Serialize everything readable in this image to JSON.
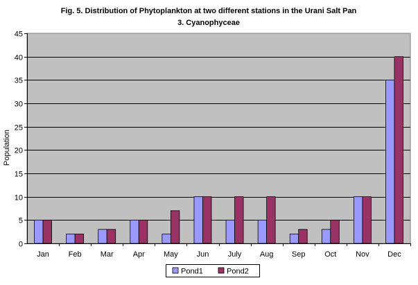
{
  "chart_data": {
    "type": "bar",
    "title": "Fig. 5. Distribution of Phytoplankton at two different stations in the Urani Salt Pan",
    "subtitle": "3. Cyanophyceae",
    "xlabel": "",
    "ylabel": "Population",
    "ylim": [
      0,
      45
    ],
    "ytick_step": 5,
    "grid": true,
    "legend_position": "bottom",
    "categories": [
      "Jan",
      "Feb",
      "Mar",
      "Apr",
      "May",
      "Jun",
      "July",
      "Aug",
      "Sep",
      "Oct",
      "Nov",
      "Dec"
    ],
    "series": [
      {
        "name": "Pond1",
        "color": "#9999ff",
        "values": [
          5,
          2,
          3,
          5,
          2,
          10,
          5,
          5,
          2,
          3,
          10,
          35
        ]
      },
      {
        "name": "Pond2",
        "color": "#993366",
        "values": [
          5,
          2,
          3,
          5,
          7,
          10,
          10,
          10,
          3,
          5,
          10,
          40
        ]
      }
    ],
    "plot_background": "#c0c0c0"
  }
}
